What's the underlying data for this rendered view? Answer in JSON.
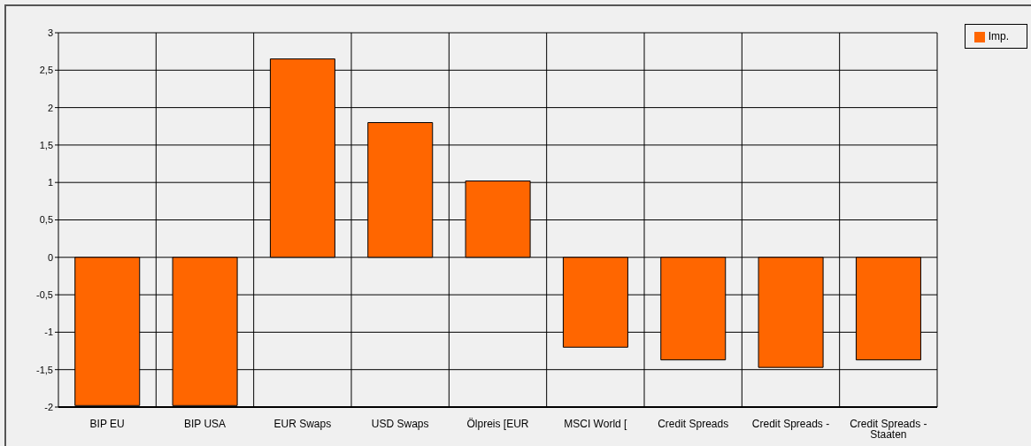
{
  "chart_data": {
    "type": "bar",
    "categories": [
      "BIP EU",
      "BIP USA",
      "EUR Swaps",
      "USD Swaps",
      "Ölpreis [EUR",
      "MSCI World [",
      "Credit Spreads",
      "Credit Spreads -",
      "Credit Spreads - Staaten"
    ],
    "series": [
      {
        "name": "Imp.",
        "color": "#ff6600",
        "values": [
          -1.98,
          -1.98,
          2.65,
          1.8,
          1.02,
          -1.2,
          -1.37,
          -1.47,
          -1.37
        ]
      }
    ],
    "ylim": [
      -2,
      3
    ],
    "yticks": [
      3,
      {
        "value": 2.5,
        "label": "2,5"
      },
      2,
      {
        "value": 1.5,
        "label": "1,5"
      },
      1,
      {
        "value": 0.5,
        "label": "0,5"
      },
      0,
      {
        "value": -0.5,
        "label": "-0,5"
      },
      -1,
      {
        "value": -1.5,
        "label": "-1,5"
      },
      -2
    ],
    "grid": true,
    "legend": "top right"
  }
}
